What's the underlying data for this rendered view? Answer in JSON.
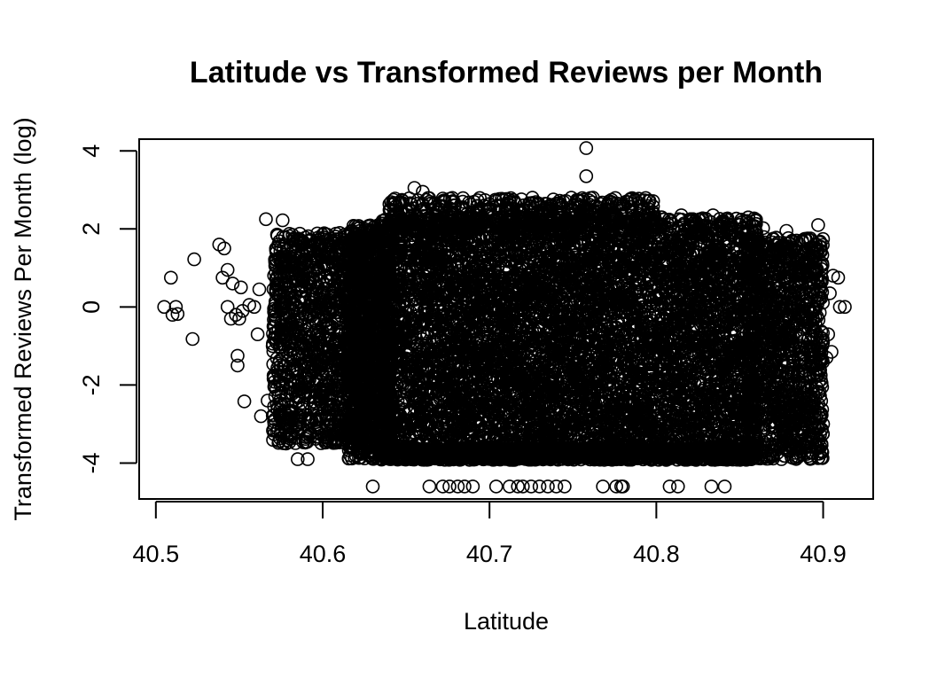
{
  "chart_data": {
    "type": "scatter",
    "title": "Latitude vs Transformed Reviews per Month",
    "xlabel": "Latitude",
    "ylabel": "Transformed Reviews Per Month (log)",
    "xlim": [
      40.49,
      40.93
    ],
    "ylim": [
      -4.92,
      4.3
    ],
    "x_ticks": [
      40.5,
      40.6,
      40.7,
      40.8,
      40.9
    ],
    "x_tick_labels": [
      "40.5",
      "40.6",
      "40.7",
      "40.8",
      "40.9"
    ],
    "y_ticks": [
      -4,
      -2,
      0,
      2,
      4
    ],
    "y_tick_labels": [
      "-4",
      "-2",
      "0",
      "2",
      "4"
    ],
    "grid": false,
    "marker": "open-circle",
    "marker_color": "#000000",
    "points": [
      [
        40.505,
        0.0
      ],
      [
        40.509,
        0.75
      ],
      [
        40.51,
        -0.2
      ],
      [
        40.512,
        0.0
      ],
      [
        40.513,
        -0.18
      ],
      [
        40.522,
        -0.82
      ],
      [
        40.523,
        1.22
      ],
      [
        40.538,
        1.6
      ],
      [
        40.54,
        0.75
      ],
      [
        40.541,
        1.5
      ],
      [
        40.543,
        0.0
      ],
      [
        40.543,
        0.95
      ],
      [
        40.545,
        -0.3
      ],
      [
        40.546,
        0.6
      ],
      [
        40.548,
        -0.2
      ],
      [
        40.549,
        -1.25
      ],
      [
        40.549,
        -1.5
      ],
      [
        40.55,
        -0.3
      ],
      [
        40.551,
        0.5
      ],
      [
        40.552,
        -0.1
      ],
      [
        40.553,
        -2.42
      ],
      [
        40.556,
        0.05
      ],
      [
        40.559,
        0.0
      ],
      [
        40.561,
        -0.7
      ],
      [
        40.562,
        0.45
      ],
      [
        40.563,
        -2.8
      ],
      [
        40.566,
        2.25
      ],
      [
        40.567,
        -2.4
      ],
      [
        40.576,
        2.22
      ],
      [
        40.578,
        -3.5
      ],
      [
        40.585,
        -3.9
      ],
      [
        40.591,
        -3.9
      ],
      [
        40.63,
        -4.6
      ],
      [
        40.655,
        3.05
      ],
      [
        40.66,
        2.95
      ],
      [
        40.664,
        -4.6
      ],
      [
        40.672,
        -4.6
      ],
      [
        40.676,
        -4.6
      ],
      [
        40.681,
        -4.6
      ],
      [
        40.685,
        -4.6
      ],
      [
        40.69,
        -4.6
      ],
      [
        40.704,
        -4.6
      ],
      [
        40.712,
        2.62
      ],
      [
        40.712,
        -4.6
      ],
      [
        40.717,
        -4.6
      ],
      [
        40.72,
        -4.6
      ],
      [
        40.725,
        -4.6
      ],
      [
        40.73,
        -4.6
      ],
      [
        40.735,
        -4.6
      ],
      [
        40.74,
        -4.6
      ],
      [
        40.745,
        -4.6
      ],
      [
        40.758,
        4.07
      ],
      [
        40.758,
        3.35
      ],
      [
        40.762,
        2.8
      ],
      [
        40.768,
        -4.6
      ],
      [
        40.776,
        -4.6
      ],
      [
        40.779,
        -4.6
      ],
      [
        40.78,
        -4.6
      ],
      [
        40.798,
        2.58
      ],
      [
        40.808,
        -4.6
      ],
      [
        40.813,
        -4.6
      ],
      [
        40.815,
        2.35
      ],
      [
        40.834,
        2.35
      ],
      [
        40.833,
        -4.6
      ],
      [
        40.841,
        -4.6
      ],
      [
        40.857,
        -3.9
      ],
      [
        40.864,
        2.02
      ],
      [
        40.875,
        -3.9
      ],
      [
        40.878,
        1.95
      ],
      [
        40.884,
        -2.7
      ],
      [
        40.888,
        -3.2
      ],
      [
        40.89,
        -3.5
      ],
      [
        40.894,
        1.3
      ],
      [
        40.897,
        -2.2
      ],
      [
        40.897,
        -2.7
      ],
      [
        40.897,
        2.1
      ],
      [
        40.898,
        1.65
      ],
      [
        40.9,
        -3.0
      ],
      [
        40.902,
        -1.3
      ],
      [
        40.903,
        -0.7
      ],
      [
        40.904,
        0.35
      ],
      [
        40.905,
        -1.15
      ],
      [
        40.906,
        0.8
      ],
      [
        40.909,
        0.75
      ],
      [
        40.91,
        0.0
      ],
      [
        40.913,
        0.0
      ]
    ],
    "dense_regions": [
      {
        "x": [
          40.57,
          40.63
        ],
        "y": [
          -3.5,
          1.9
        ],
        "count": 1400
      },
      {
        "x": [
          40.615,
          40.64
        ],
        "y": [
          -3.9,
          2.1
        ],
        "count": 1000
      },
      {
        "x": [
          40.635,
          40.86
        ],
        "y": [
          -3.9,
          2.3
        ],
        "count": 12000
      },
      {
        "x": [
          40.635,
          40.86
        ],
        "y": [
          -3.92,
          -3.62
        ],
        "count": 1200
      },
      {
        "x": [
          40.855,
          40.9
        ],
        "y": [
          -3.9,
          1.8
        ],
        "count": 1200
      },
      {
        "x": [
          40.64,
          40.8
        ],
        "y": [
          2.0,
          2.8
        ],
        "count": 500
      }
    ]
  }
}
